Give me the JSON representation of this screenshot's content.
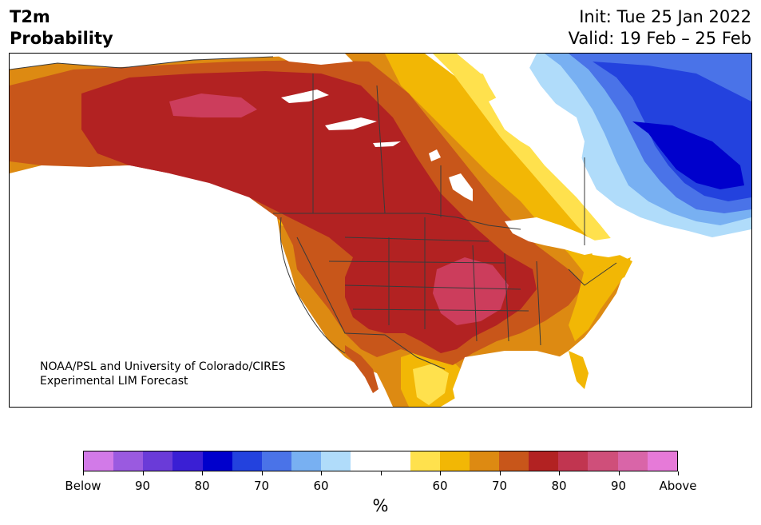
{
  "title": {
    "left_line1": "T2m",
    "left_line2": "Probability",
    "init": "Init: Tue 25 Jan 2022",
    "valid": "Valid: 19 Feb – 25 Feb"
  },
  "credit": {
    "line1": "NOAA/PSL and University of Colorado/CIRES",
    "line2": "Experimental LIM Forecast"
  },
  "colorbar": {
    "unit_label": "%",
    "colors": [
      "#d27ae8",
      "#9a5ae0",
      "#6a3bd8",
      "#3a1fd4",
      "#0000cc",
      "#2342de",
      "#4a73e8",
      "#78b0f2",
      "#b0dcfa",
      "#ffffff",
      "#ffffff",
      "#ffe14d",
      "#f2b705",
      "#dd8a12",
      "#c8561a",
      "#b22222",
      "#c13550",
      "#cf4f7a",
      "#d965a8",
      "#e67ad8"
    ],
    "tick_labels": [
      "Below",
      "90",
      "80",
      "70",
      "60",
      "",
      "60",
      "70",
      "80",
      "90",
      "Above"
    ]
  },
  "map": {
    "region": "North America",
    "colors": {
      "above_90": "#cc3d5c",
      "above_80": "#b22222",
      "above_70": "#c8561a",
      "above_65": "#dd8a12",
      "above_60": "#f2b705",
      "above_55": "#ffe14d",
      "below_55": "#b0dcfa",
      "below_60": "#78b0f2",
      "below_65": "#4a73e8",
      "below_70": "#2342de",
      "below_80": "#0000cc",
      "border": "#3a3a3a",
      "water": "#ffffff"
    }
  }
}
